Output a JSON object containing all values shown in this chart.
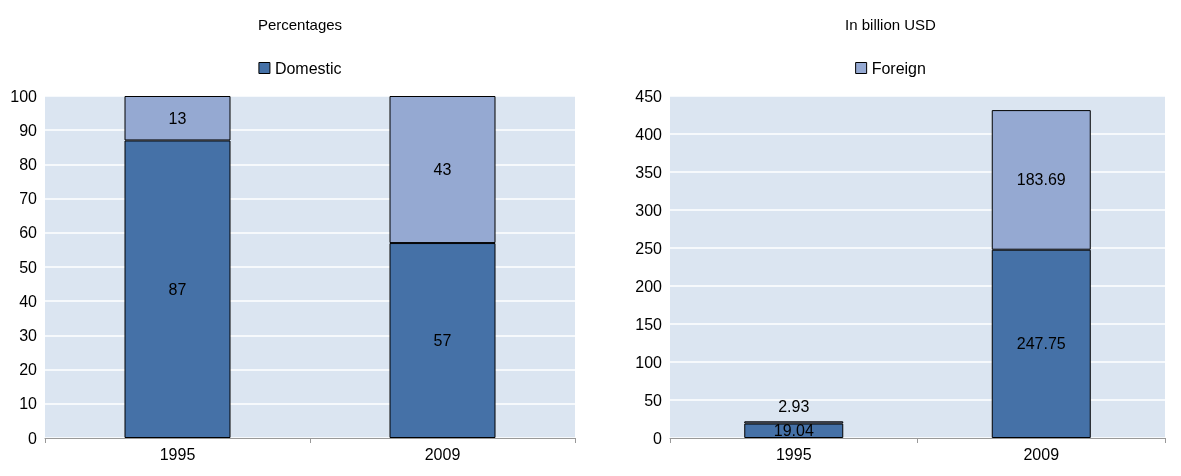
{
  "chart_data": [
    {
      "type": "bar",
      "title": "Percentages",
      "categories": [
        "1995",
        "2009"
      ],
      "stacked": true,
      "data_labels": true,
      "grid": "y",
      "legend": "top",
      "ylim": [
        0,
        100
      ],
      "yticks": [
        0,
        10,
        20,
        30,
        40,
        50,
        60,
        70,
        80,
        90,
        100
      ],
      "series": [
        {
          "name": "Domestic",
          "color": "#4571a7",
          "values": [
            87,
            57
          ]
        },
        {
          "color": "#95a9d2",
          "values": [
            13,
            43
          ]
        }
      ]
    },
    {
      "type": "bar",
      "title": "In billion USD",
      "categories": [
        "1995",
        "2009"
      ],
      "stacked": true,
      "data_labels": true,
      "grid": "y",
      "legend": "top",
      "ylim": [
        0,
        450
      ],
      "yticks": [
        0,
        50,
        100,
        150,
        200,
        250,
        300,
        350,
        400,
        450
      ],
      "series": [
        {
          "color": "#4571a7",
          "values": [
            19.04,
            247.75
          ]
        },
        {
          "name": "Foreign",
          "color": "#95a9d2",
          "values": [
            2.93,
            183.69
          ]
        }
      ]
    }
  ]
}
